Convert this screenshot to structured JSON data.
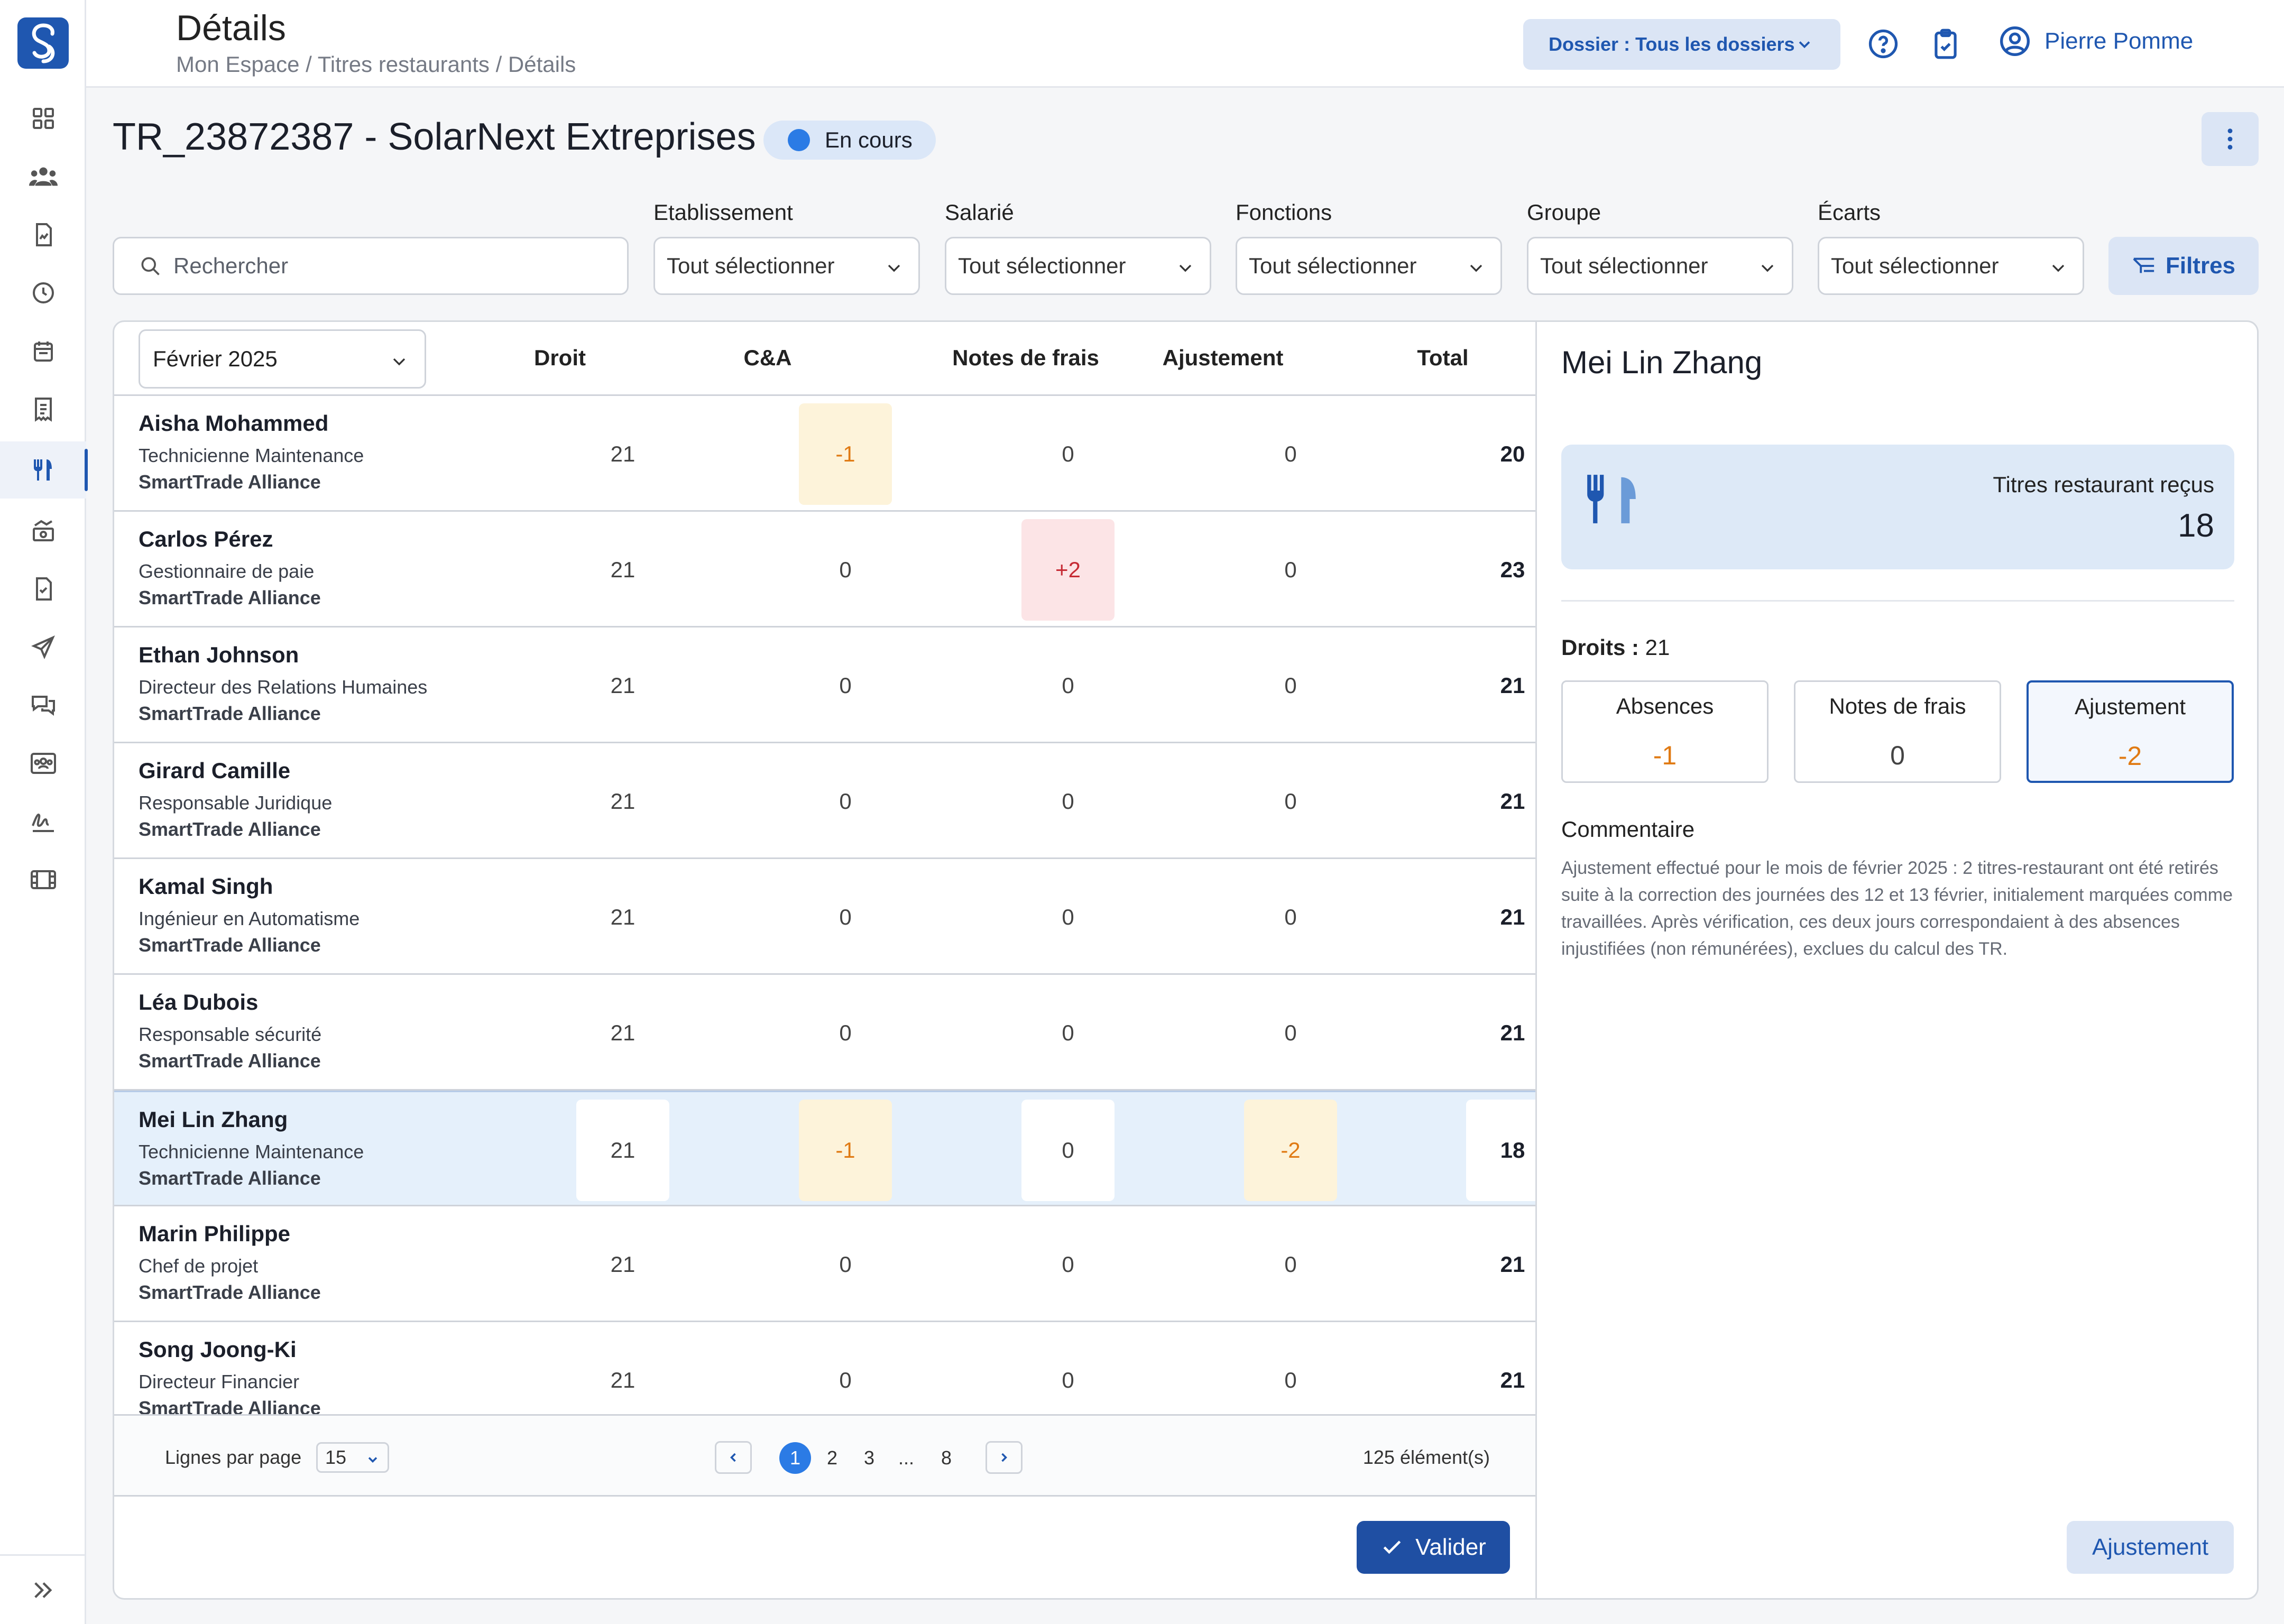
{
  "header": {
    "title": "Détails",
    "breadcrumb": "Mon Espace / Titres restaurants / Détails",
    "dossier_label": "Dossier : Tous les dossiers",
    "user_name": "Pierre Pomme"
  },
  "page": {
    "title": "TR_23872387 - SolarNext Extreprises",
    "status": "En cours"
  },
  "filters": {
    "search_placeholder": "Rechercher",
    "etablissement": {
      "label": "Etablissement",
      "value": "Tout sélectionner"
    },
    "salarie": {
      "label": "Salarié",
      "value": "Tout sélectionner"
    },
    "fonctions": {
      "label": "Fonctions",
      "value": "Tout sélectionner"
    },
    "groupe": {
      "label": "Groupe",
      "value": "Tout sélectionner"
    },
    "ecarts": {
      "label": "Écarts",
      "value": "Tout sélectionner"
    },
    "filtres_button": "Filtres"
  },
  "table": {
    "month": "Février 2025",
    "columns": [
      "Droit",
      "C&A",
      "Notes de frais",
      "Ajustement",
      "Total"
    ],
    "rows": [
      {
        "name": "Aisha Mohammed",
        "role": "Technicienne Maintenance",
        "company": "SmartTrade Alliance",
        "droit": "21",
        "ca": "-1",
        "ndf": "0",
        "ajust": "0",
        "total": "20"
      },
      {
        "name": "Carlos Pérez",
        "role": "Gestionnaire de paie",
        "company": "SmartTrade Alliance",
        "droit": "21",
        "ca": "0",
        "ndf": "+2",
        "ajust": "0",
        "total": "23"
      },
      {
        "name": "Ethan Johnson",
        "role": "Directeur des Relations Humaines",
        "company": "SmartTrade Alliance",
        "droit": "21",
        "ca": "0",
        "ndf": "0",
        "ajust": "0",
        "total": "21"
      },
      {
        "name": "Girard Camille",
        "role": "Responsable Juridique",
        "company": "SmartTrade Alliance",
        "droit": "21",
        "ca": "0",
        "ndf": "0",
        "ajust": "0",
        "total": "21"
      },
      {
        "name": "Kamal Singh",
        "role": "Ingénieur en Automatisme",
        "company": "SmartTrade Alliance",
        "droit": "21",
        "ca": "0",
        "ndf": "0",
        "ajust": "0",
        "total": "21"
      },
      {
        "name": "Léa Dubois",
        "role": "Responsable sécurité",
        "company": "SmartTrade Alliance",
        "droit": "21",
        "ca": "0",
        "ndf": "0",
        "ajust": "0",
        "total": "21"
      },
      {
        "name": "Mei Lin Zhang",
        "role": "Technicienne Maintenance",
        "company": "SmartTrade Alliance",
        "droit": "21",
        "ca": "-1",
        "ndf": "0",
        "ajust": "-2",
        "total": "18"
      },
      {
        "name": "Marin Philippe",
        "role": "Chef de projet",
        "company": "SmartTrade Alliance",
        "droit": "21",
        "ca": "0",
        "ndf": "0",
        "ajust": "0",
        "total": "21"
      },
      {
        "name": "Song Joong-Ki",
        "role": "Directeur Financier",
        "company": "SmartTrade Alliance",
        "droit": "21",
        "ca": "0",
        "ndf": "0",
        "ajust": "0",
        "total": "21"
      }
    ],
    "footer": {
      "lines_label": "Lignes par page",
      "lines_value": "15",
      "pages": [
        "1",
        "2",
        "3",
        "...",
        "8"
      ],
      "current_page": "1",
      "count": "125 élément(s)"
    },
    "validate_button": "Valider"
  },
  "detail": {
    "name": "Mei Lin Zhang",
    "tr_label": "Titres restaurant reçus",
    "tr_value": "18",
    "droits_label": "Droits :",
    "droits_value": "21",
    "stats": [
      {
        "label": "Absences",
        "value": "-1"
      },
      {
        "label": "Notes de frais",
        "value": "0"
      },
      {
        "label": "Ajustement",
        "value": "-2"
      }
    ],
    "comment_title": "Commentaire",
    "comment": "Ajustement effectué pour le mois de février 2025 : 2 titres-restaurant ont été retirés suite à la correction des journées des 12 et 13 février, initialement marquées comme travaillées. Après vérification, ces deux jours correspondaient à des absences injustifiées (non rémunérées), exclues du calcul des TR.",
    "ajustement_button": "Ajustement"
  },
  "colors": {
    "primary": "#1f57b0",
    "accent_blue": "#2b7be5",
    "negative": "#e07a13",
    "positive": "#c62a34",
    "selected_row": "#e5f0fb"
  },
  "icons": {
    "sidebar": [
      "dashboard-icon",
      "users-icon",
      "document-icon",
      "clock-icon",
      "calendar-icon",
      "receipt-icon",
      "restaurant-icon",
      "money-icon",
      "file-check-icon",
      "send-icon",
      "chat-icon",
      "team-icon",
      "signature-icon",
      "film-icon"
    ],
    "collapse": "double-chevron-right-icon"
  }
}
